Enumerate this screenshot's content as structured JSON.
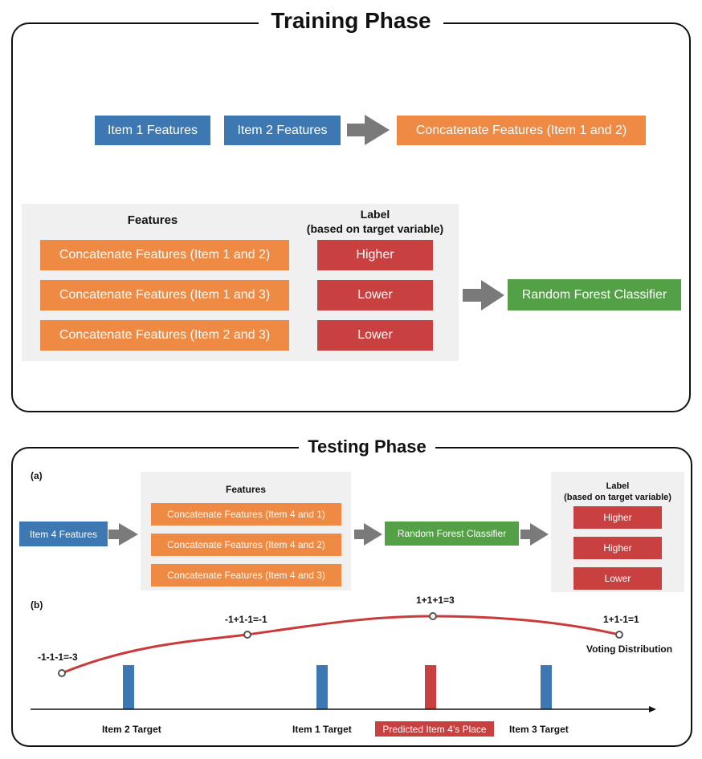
{
  "training": {
    "title": "Training Phase",
    "item1": "Item 1 Features",
    "item2": "Item 2 Features",
    "concat_top": "Concatenate Features (Item 1 and 2)",
    "features_header": "Features",
    "label_header_line1": "Label",
    "label_header_line2": "(based on target variable)",
    "rows": [
      {
        "feature": "Concatenate Features (Item 1 and 2)",
        "label": "Higher"
      },
      {
        "feature": "Concatenate Features (Item 1 and 3)",
        "label": "Lower"
      },
      {
        "feature": "Concatenate Features (Item 2 and 3)",
        "label": "Lower"
      }
    ],
    "classifier": "Random Forest Classifier"
  },
  "testing": {
    "title": "Testing Phase",
    "part_a": "(a)",
    "part_b": "(b)",
    "item4": "Item 4 Features",
    "features_header": "Features",
    "features": [
      "Concatenate Features (Item 4 and 1)",
      "Concatenate Features (Item 4 and 2)",
      "Concatenate Features (Item 4 and 3)"
    ],
    "classifier": "Random Forest Classifier",
    "label_header_line1": "Label",
    "label_header_line2": "(based on target variable)",
    "labels": [
      "Higher",
      "Higher",
      "Lower"
    ],
    "votes": [
      "-1-1-1=-3",
      "-1+1-1=-1",
      "1+1+1=3",
      "1+1-1=1"
    ],
    "voting_label": "Voting Distribution",
    "targets": [
      "Item 2 Target",
      "Item 1 Target",
      "Predicted Item 4’s Place",
      "Item 3 Target"
    ]
  },
  "colors": {
    "blue": "#3d78b2",
    "orange": "#ee8a44",
    "red": "#c94040",
    "green": "#53a046",
    "arrow_gray": "#7a7a7a",
    "curve_red": "#c93a3a"
  }
}
